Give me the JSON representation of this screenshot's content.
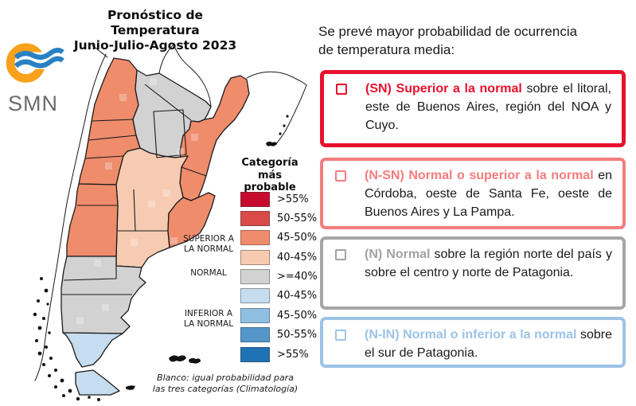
{
  "title": {
    "line1": "Pronóstico de Temperatura",
    "line2": "Junio-Julio-Agosto 2023"
  },
  "logo": {
    "label": "SMN",
    "ring_color": "#F9A11B",
    "wave_color": "#2980C4"
  },
  "intro": {
    "line1": "Se prevé mayor probabilidad de ocurrencia",
    "line2": "de temperatura media:"
  },
  "legend": {
    "title_line1": "Categoría más",
    "title_line2": "probable",
    "side_labels": [
      {
        "text": "SUPERIOR A LA NORMAL"
      },
      {
        "text": "NORMAL"
      },
      {
        "text": "INFERIOR A LA NORMAL"
      }
    ],
    "entries": [
      {
        "label": ">55%",
        "color": "#C60B2F"
      },
      {
        "label": "50-55%",
        "color": "#D84B49"
      },
      {
        "label": "45-50%",
        "color": "#EF8C6C"
      },
      {
        "label": "40-45%",
        "color": "#F6CBB2"
      },
      {
        "label": ">=40%",
        "color": "#D2D2D2"
      },
      {
        "label": "40-45%",
        "color": "#C5DDEF"
      },
      {
        "label": "45-50%",
        "color": "#90C0E1"
      },
      {
        "label": "50-55%",
        "color": "#5496CA"
      },
      {
        "label": ">55%",
        "color": "#1F72B4"
      }
    ],
    "note_line1": "Blanco: igual probabilidad para",
    "note_line2": "las tres categorías (Climatología)"
  },
  "bullets": [
    {
      "id": "sn",
      "tag": "(SN) Superior a la normal",
      "text": " sobre el litoral, este de Buenos Aires, región del NOA y Cuyo.",
      "accent": "#E8112D",
      "border": "#E8112D"
    },
    {
      "id": "n-sn",
      "tag": "(N-SN) Normal o superior a la normal",
      "text": " en Córdoba, oeste de Santa Fe, oeste de Buenos Aires y La Pampa.",
      "accent": "#F47C7C",
      "border": "#F47C7C"
    },
    {
      "id": "n",
      "tag": "(N) Normal",
      "text": "  sobre la región norte del país y sobre el centro y norte de Patagonia.",
      "accent": "#A2A2A2",
      "border": "#A6A6A6"
    },
    {
      "id": "n-in",
      "tag": "(N-IN) Normal o inferior  a la normal",
      "text": " sobre el sur de Patagonia.",
      "accent": "#9DC3E6",
      "border": "#9DC3E6"
    }
  ],
  "map": {
    "regions": [
      {
        "id": "noa",
        "category": "Superior a la normal 45-50%",
        "color": "#EF8C6C"
      },
      {
        "id": "north-center",
        "category": "Normal >=40%",
        "color": "#D2D2D2"
      },
      {
        "id": "litoral",
        "category": "Superior a la normal 45-50%",
        "color": "#EF8C6C"
      },
      {
        "id": "central",
        "category": "Superior a la normal 40-45%",
        "color": "#F6CBB2"
      },
      {
        "id": "cuyo",
        "category": "Superior a la normal 45-50%",
        "color": "#EF8C6C"
      },
      {
        "id": "buenos-aires-east",
        "category": "Superior a la normal 45-50%",
        "color": "#EF8C6C"
      },
      {
        "id": "patagonia",
        "category": "Normal >=40%",
        "color": "#D2D2D2"
      },
      {
        "id": "santa-cruz-south",
        "category": "Inferior a la normal 40-45%",
        "color": "#C5DDEF"
      },
      {
        "id": "tierra-del-fuego",
        "category": "Inferior a la normal 40-45%",
        "color": "#C5DDEF"
      }
    ]
  }
}
